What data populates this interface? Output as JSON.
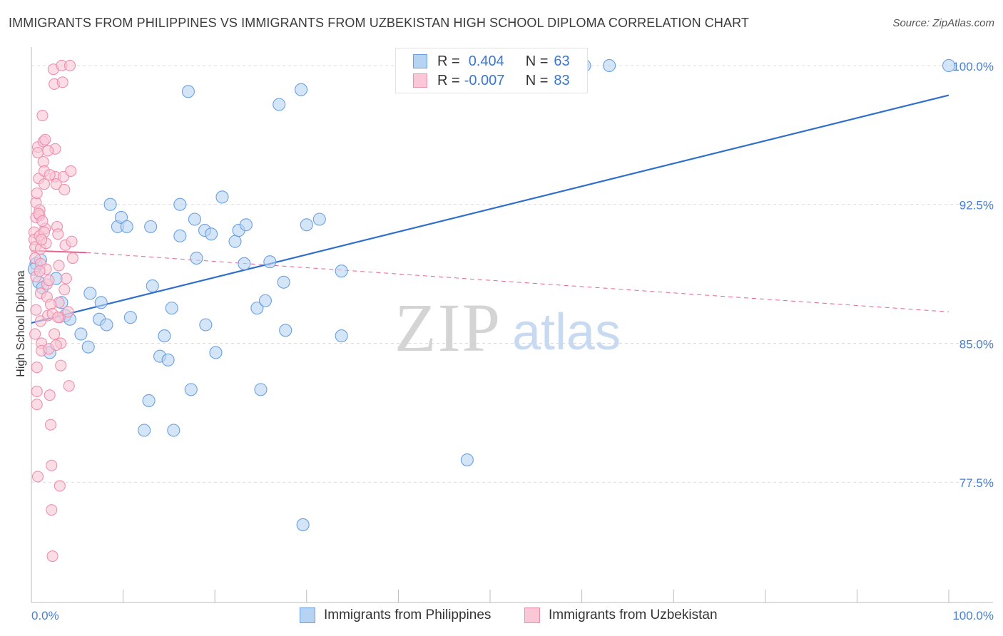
{
  "title": "IMMIGRANTS FROM PHILIPPINES VS IMMIGRANTS FROM UZBEKISTAN HIGH SCHOOL DIPLOMA CORRELATION CHART",
  "source": "Source: ZipAtlas.com",
  "watermark": {
    "zip": "ZIP",
    "atlas": "atlas"
  },
  "colors": {
    "blue": "#6aa0e0",
    "blue_fill": "#b7d3f3",
    "blue_line": "#2f6fcc",
    "pink": "#ee8fae",
    "pink_fill": "#f9c7d6",
    "pink_line": "#e8648f",
    "axis_text": "#4a7fd0"
  },
  "legend": {
    "r_label": "R =",
    "n_label": "N =",
    "series": [
      {
        "r": "0.404",
        "n": "63"
      },
      {
        "r": "-0.007",
        "n": "83"
      }
    ]
  },
  "chart_data": {
    "type": "scatter",
    "title": "IMMIGRANTS FROM PHILIPPINES VS IMMIGRANTS FROM UZBEKISTAN HIGH SCHOOL DIPLOMA CORRELATION CHART",
    "xlabel": "",
    "ylabel": "High School Diploma",
    "xlim": [
      0,
      100
    ],
    "ylim": [
      71.0,
      101.0
    ],
    "x_tick_labels": [
      "0.0%",
      "100.0%"
    ],
    "y_ticks": [
      77.5,
      85.0,
      92.5,
      100.0
    ],
    "y_tick_labels": [
      "77.5%",
      "85.0%",
      "92.5%",
      "100.0%"
    ],
    "grid": "horizontal dashed",
    "legend_position": "bottom",
    "series": [
      {
        "name": "Immigrants from Philippines",
        "r": 0.404,
        "n": 63,
        "trend": {
          "x": [
            0.0,
            100.0
          ],
          "y": [
            86.1,
            98.4
          ]
        },
        "points": [
          [
            0.5,
            89.3
          ],
          [
            0.8,
            88.3
          ],
          [
            1.0,
            89.5
          ],
          [
            1.2,
            88.0
          ],
          [
            2.0,
            84.5
          ],
          [
            2.7,
            88.5
          ],
          [
            3.3,
            87.2
          ],
          [
            3.7,
            86.5
          ],
          [
            4.2,
            86.3
          ],
          [
            6.4,
            87.7
          ],
          [
            5.4,
            85.5
          ],
          [
            6.2,
            84.8
          ],
          [
            7.4,
            86.3
          ],
          [
            7.6,
            87.2
          ],
          [
            8.2,
            86.0
          ],
          [
            8.6,
            92.5
          ],
          [
            9.4,
            91.3
          ],
          [
            9.8,
            91.8
          ],
          [
            10.4,
            91.3
          ],
          [
            10.8,
            86.4
          ],
          [
            12.3,
            80.3
          ],
          [
            12.8,
            81.9
          ],
          [
            13.2,
            88.1
          ],
          [
            13.0,
            91.3
          ],
          [
            14.0,
            84.3
          ],
          [
            14.5,
            85.4
          ],
          [
            14.9,
            84.1
          ],
          [
            15.3,
            86.9
          ],
          [
            15.5,
            80.3
          ],
          [
            16.2,
            92.5
          ],
          [
            16.2,
            90.8
          ],
          [
            17.1,
            98.6
          ],
          [
            17.4,
            82.5
          ],
          [
            17.8,
            91.7
          ],
          [
            18.0,
            89.6
          ],
          [
            18.9,
            91.1
          ],
          [
            19.0,
            86.0
          ],
          [
            19.6,
            90.9
          ],
          [
            20.1,
            84.5
          ],
          [
            20.8,
            92.9
          ],
          [
            22.2,
            90.5
          ],
          [
            22.6,
            91.1
          ],
          [
            23.2,
            89.3
          ],
          [
            23.4,
            91.4
          ],
          [
            24.6,
            86.9
          ],
          [
            25.0,
            82.5
          ],
          [
            25.5,
            87.3
          ],
          [
            26.0,
            89.4
          ],
          [
            27.0,
            97.9
          ],
          [
            27.5,
            88.3
          ],
          [
            27.7,
            85.7
          ],
          [
            29.4,
            98.7
          ],
          [
            29.6,
            75.2
          ],
          [
            30.0,
            91.4
          ],
          [
            31.4,
            91.7
          ],
          [
            33.8,
            88.9
          ],
          [
            33.8,
            85.4
          ],
          [
            47.5,
            78.7
          ],
          [
            60.0,
            100.0
          ],
          [
            60.3,
            100.0
          ],
          [
            63.0,
            100.0
          ],
          [
            100.0,
            100.0
          ],
          [
            0.3,
            89.0
          ]
        ]
      },
      {
        "name": "Immigrants from Uzbekistan",
        "r": -0.007,
        "n": 83,
        "trend": {
          "x": [
            0.0,
            6.0,
            100.0
          ],
          "y": [
            90.0,
            89.9,
            86.7
          ]
        },
        "points": [
          [
            0.3,
            91.0
          ],
          [
            0.3,
            90.6
          ],
          [
            0.4,
            90.2
          ],
          [
            0.4,
            89.6
          ],
          [
            0.5,
            88.6
          ],
          [
            0.5,
            92.6
          ],
          [
            0.5,
            91.8
          ],
          [
            0.6,
            83.7
          ],
          [
            0.6,
            82.4
          ],
          [
            0.6,
            81.7
          ],
          [
            0.7,
            77.8
          ],
          [
            0.7,
            95.6
          ],
          [
            0.7,
            95.3
          ],
          [
            0.8,
            93.9
          ],
          [
            0.9,
            92.2
          ],
          [
            0.9,
            91.9
          ],
          [
            0.9,
            90.8
          ],
          [
            1.0,
            90.1
          ],
          [
            1.0,
            89.3
          ],
          [
            1.0,
            87.7
          ],
          [
            1.0,
            86.2
          ],
          [
            1.1,
            85.0
          ],
          [
            1.1,
            84.6
          ],
          [
            1.2,
            97.3
          ],
          [
            1.3,
            95.9
          ],
          [
            1.3,
            94.8
          ],
          [
            1.4,
            94.3
          ],
          [
            1.4,
            93.6
          ],
          [
            1.5,
            91.2
          ],
          [
            1.6,
            90.4
          ],
          [
            1.7,
            88.2
          ],
          [
            1.7,
            87.5
          ],
          [
            1.8,
            86.5
          ],
          [
            1.9,
            84.7
          ],
          [
            2.0,
            82.2
          ],
          [
            2.1,
            80.6
          ],
          [
            2.2,
            78.4
          ],
          [
            2.2,
            76.0
          ],
          [
            2.3,
            73.5
          ],
          [
            2.4,
            99.8
          ],
          [
            2.5,
            99.0
          ],
          [
            2.6,
            95.5
          ],
          [
            2.6,
            94.0
          ],
          [
            2.7,
            93.6
          ],
          [
            2.8,
            91.3
          ],
          [
            2.9,
            90.9
          ],
          [
            3.0,
            89.2
          ],
          [
            3.0,
            87.2
          ],
          [
            3.1,
            86.4
          ],
          [
            3.2,
            85.0
          ],
          [
            3.2,
            83.8
          ],
          [
            3.3,
            100.0
          ],
          [
            3.4,
            99.1
          ],
          [
            3.5,
            94.0
          ],
          [
            3.6,
            93.3
          ],
          [
            3.7,
            90.3
          ],
          [
            3.8,
            88.5
          ],
          [
            4.0,
            86.7
          ],
          [
            4.1,
            82.7
          ],
          [
            4.2,
            100.0
          ],
          [
            4.3,
            94.3
          ],
          [
            4.4,
            90.5
          ],
          [
            4.5,
            89.6
          ],
          [
            1.5,
            96.0
          ],
          [
            1.8,
            95.4
          ],
          [
            2.0,
            94.1
          ],
          [
            0.6,
            93.1
          ],
          [
            0.8,
            92.0
          ],
          [
            1.2,
            91.6
          ],
          [
            1.4,
            91.0
          ],
          [
            1.6,
            89.0
          ],
          [
            1.9,
            88.4
          ],
          [
            2.1,
            87.1
          ],
          [
            2.3,
            86.6
          ],
          [
            2.5,
            85.5
          ],
          [
            2.7,
            84.9
          ],
          [
            2.9,
            86.4
          ],
          [
            3.1,
            77.3
          ],
          [
            0.4,
            85.5
          ],
          [
            0.5,
            86.8
          ],
          [
            0.9,
            88.9
          ],
          [
            1.1,
            90.6
          ],
          [
            3.6,
            87.9
          ]
        ]
      }
    ]
  },
  "bottom_legend": [
    {
      "label": "Immigrants from Philippines"
    },
    {
      "label": "Immigrants from Uzbekistan"
    }
  ]
}
